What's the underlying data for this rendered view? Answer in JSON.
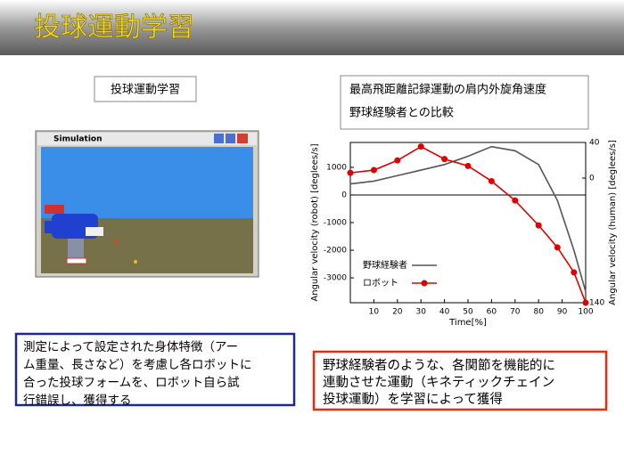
{
  "title": "投球運動学習",
  "left_label": "投球運動学習",
  "window_title": "Simulation",
  "left_caption": [
    "測定によって設定された身体特徴（アー",
    "ム重量、長さなど）を考慮し各ロボットに",
    "合った投球フォームを、ロボット自ら試",
    "行錯誤し、獲得する"
  ],
  "right_label": [
    "最高飛距離記録運動の肩内外旋角速度",
    "野球経験者との比較"
  ],
  "right_caption": [
    "野球経験者のような、各関節を機能的に",
    "連動させた運動（キネティックチェイン",
    "投球運動）を学習によって獲得"
  ],
  "chart_data": {
    "type": "line",
    "x_label": "Time[%]",
    "y_label": "Angular velocity (robot) [deglees/s]",
    "y2_label": "Angular velocity (human) [deglees/s]",
    "x": [
      0,
      10,
      20,
      30,
      40,
      50,
      60,
      70,
      80,
      88,
      95,
      100
    ],
    "series": [
      {
        "name": "野球経験者",
        "color": "#555555",
        "values": [
          400,
          500,
          700,
          900,
          1100,
          1400,
          1750,
          1600,
          1100,
          -200,
          -2000,
          -3500
        ]
      },
      {
        "name": "ロボット",
        "color": "#e00000",
        "values": [
          800,
          900,
          1250,
          1750,
          1300,
          1050,
          500,
          -200,
          -1100,
          -1900,
          -2800,
          -3900
        ]
      }
    ],
    "xlim": [
      0,
      100
    ],
    "xticks": [
      10,
      20,
      30,
      40,
      50,
      60,
      70,
      80,
      90,
      100
    ],
    "ylim": [
      -3900,
      1900
    ],
    "yticks": [
      -3000,
      -2000,
      -1000,
      0,
      1000
    ],
    "y2lim": [
      -140,
      40
    ],
    "y2ticks": [
      40,
      0,
      {
        "value": -140,
        "label": "140"
      }
    ],
    "legend": "lower-left",
    "grid": false
  }
}
